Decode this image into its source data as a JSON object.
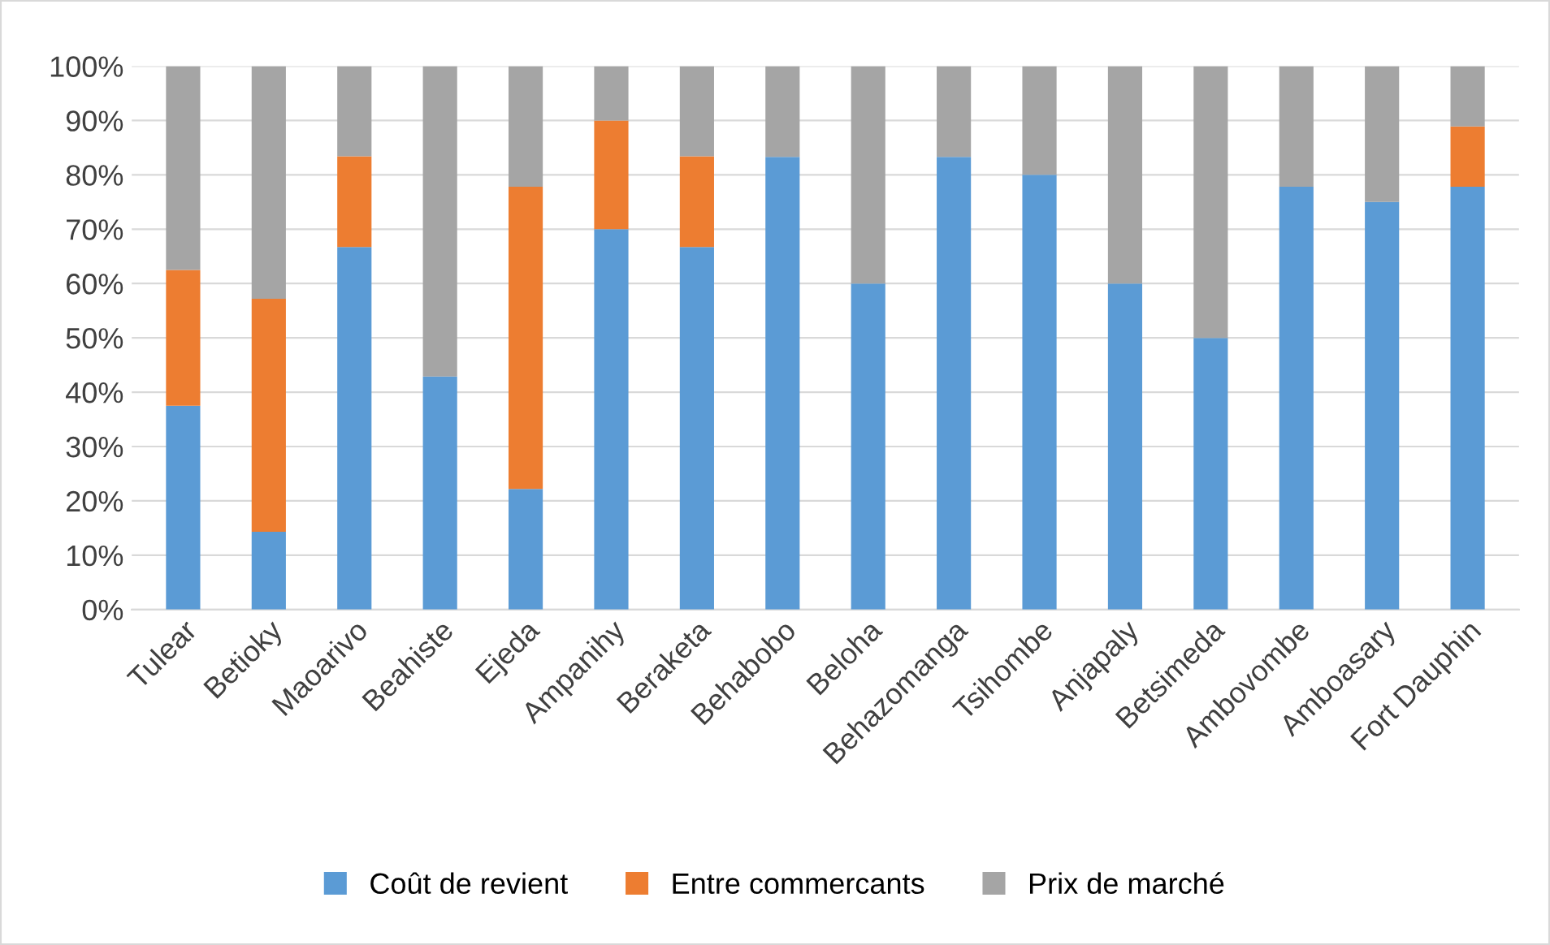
{
  "chart_data": {
    "type": "bar",
    "stacked": true,
    "categories": [
      "Tulear",
      "Betioky",
      "Maoarivo",
      "Beahiste",
      "Ejeda",
      "Ampanihy",
      "Beraketa",
      "Behabobo",
      "Beloha",
      "Behazomanga",
      "Tsihombe",
      "Anjapaly",
      "Betsimeda",
      "Ambovombe",
      "Amboasary",
      "Fort Dauphin"
    ],
    "series": [
      {
        "name": "Coût de revient",
        "color": "#5b9bd5",
        "values": [
          37.5,
          14.3,
          66.7,
          42.9,
          22.2,
          70,
          66.7,
          83.3,
          60,
          83.3,
          80,
          60,
          50,
          77.8,
          75,
          77.8
        ]
      },
      {
        "name": "Entre commercants",
        "color": "#ed7d31",
        "values": [
          25,
          42.9,
          16.7,
          0,
          55.6,
          20,
          16.7,
          0,
          0,
          0,
          0,
          0,
          0,
          0,
          0,
          11.1
        ]
      },
      {
        "name": "Prix de marché",
        "color": "#a5a5a5",
        "values": [
          37.5,
          42.8,
          16.6,
          57.1,
          22.2,
          10,
          16.6,
          16.7,
          40,
          16.7,
          20,
          40,
          50,
          22.2,
          25,
          11.1
        ]
      }
    ],
    "ylim": [
      0,
      100
    ],
    "yticks": [
      {
        "value": 0,
        "label": "0%"
      },
      {
        "value": 10,
        "label": "10%"
      },
      {
        "value": 20,
        "label": "20%"
      },
      {
        "value": 30,
        "label": "30%"
      },
      {
        "value": 40,
        "label": "40%"
      },
      {
        "value": 50,
        "label": "50%"
      },
      {
        "value": 60,
        "label": "60%"
      },
      {
        "value": 70,
        "label": "70%"
      },
      {
        "value": 80,
        "label": "80%"
      },
      {
        "value": 90,
        "label": "90%"
      },
      {
        "value": 100,
        "label": "100%"
      }
    ],
    "grid": "y",
    "legend": "bottom"
  }
}
